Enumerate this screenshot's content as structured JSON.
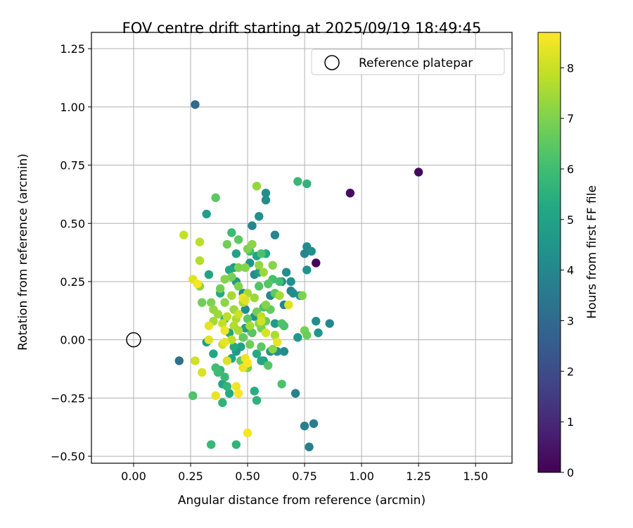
{
  "chart_data": {
    "type": "scatter",
    "title": "FOV centre drift starting at 2025/09/19 18:49:45",
    "xlabel": "Angular distance from reference (arcmin)",
    "ylabel": "Rotation from reference (arcmin)",
    "xlim": [
      -0.185,
      1.66
    ],
    "ylim": [
      -0.53,
      1.32
    ],
    "xticks": [
      0.0,
      0.25,
      0.5,
      0.75,
      1.0,
      1.25,
      1.5
    ],
    "xtick_labels": [
      "0.00",
      "0.25",
      "0.50",
      "0.75",
      "1.00",
      "1.25",
      "1.50"
    ],
    "yticks": [
      -0.5,
      -0.25,
      0.0,
      0.25,
      0.5,
      0.75,
      1.0,
      1.25
    ],
    "ytick_labels": [
      "−0.50",
      "−0.25",
      "0.00",
      "0.25",
      "0.50",
      "0.75",
      "1.00",
      "1.25"
    ],
    "grid": true,
    "legend": {
      "label": "Reference platepar",
      "position": "top-right"
    },
    "reference_point": {
      "x": 0.0,
      "y": 0.0
    },
    "colorbar": {
      "label": "Hours from first FF file",
      "range": [
        0,
        8.7
      ],
      "ticks": [
        0,
        1,
        2,
        3,
        4,
        5,
        6,
        7,
        8
      ],
      "tick_labels": [
        "0",
        "1",
        "2",
        "3",
        "4",
        "5",
        "6",
        "7",
        "8"
      ],
      "colormap": "viridis"
    },
    "points": [
      [
        0.8,
        0.33,
        0.1
      ],
      [
        0.95,
        0.63,
        0.3
      ],
      [
        1.25,
        0.72,
        0.2
      ],
      [
        0.27,
        1.01,
        3.0
      ],
      [
        0.2,
        -0.09,
        3.2
      ],
      [
        0.77,
        -0.46,
        3.8
      ],
      [
        0.75,
        -0.37,
        3.8
      ],
      [
        0.79,
        -0.36,
        3.7
      ],
      [
        0.71,
        -0.23,
        3.8
      ],
      [
        0.52,
        0.49,
        4.0
      ],
      [
        0.62,
        0.45,
        4.0
      ],
      [
        0.58,
        0.63,
        4.2
      ],
      [
        0.58,
        0.6,
        4.2
      ],
      [
        0.55,
        0.53,
        4.3
      ],
      [
        0.76,
        0.4,
        4.1
      ],
      [
        0.78,
        0.38,
        4.3
      ],
      [
        0.75,
        0.37,
        4.0
      ],
      [
        0.76,
        0.3,
        4.4
      ],
      [
        0.67,
        0.29,
        4.2
      ],
      [
        0.65,
        0.25,
        4.0
      ],
      [
        0.69,
        0.25,
        4.3
      ],
      [
        0.69,
        0.21,
        3.8
      ],
      [
        0.7,
        0.2,
        4.2
      ],
      [
        0.73,
        0.19,
        4.3
      ],
      [
        0.66,
        0.15,
        3.9
      ],
      [
        0.6,
        0.19,
        4.0
      ],
      [
        0.8,
        0.08,
        4.2
      ],
      [
        0.86,
        0.07,
        4.0
      ],
      [
        0.81,
        0.03,
        4.5
      ],
      [
        0.72,
        0.01,
        4.6
      ],
      [
        0.66,
        -0.05,
        4.2
      ],
      [
        0.63,
        -0.05,
        4.3
      ],
      [
        0.6,
        -0.05,
        4.5
      ],
      [
        0.57,
        -0.09,
        4.8
      ],
      [
        0.62,
        0.07,
        4.7
      ],
      [
        0.53,
        0.28,
        4.2
      ],
      [
        0.51,
        0.33,
        4.5
      ],
      [
        0.55,
        0.29,
        4.8
      ],
      [
        0.48,
        0.2,
        4.0
      ],
      [
        0.49,
        0.13,
        4.2
      ],
      [
        0.53,
        0.1,
        4.4
      ],
      [
        0.45,
        0.25,
        4.6
      ],
      [
        0.44,
        0.31,
        4.7
      ],
      [
        0.45,
        0.37,
        5.0
      ],
      [
        0.42,
        0.3,
        5.2
      ],
      [
        0.54,
        0.36,
        5.0
      ],
      [
        0.58,
        0.37,
        5.2
      ],
      [
        0.49,
        0.05,
        4.8
      ],
      [
        0.47,
        -0.03,
        5.0
      ],
      [
        0.45,
        -0.05,
        4.6
      ],
      [
        0.43,
        -0.08,
        5.1
      ],
      [
        0.56,
        -0.09,
        5.2
      ],
      [
        0.54,
        -0.06,
        5.3
      ],
      [
        0.32,
        0.54,
        4.8
      ],
      [
        0.33,
        0.28,
        5.0
      ],
      [
        0.32,
        -0.01,
        4.8
      ],
      [
        0.35,
        -0.06,
        5.2
      ],
      [
        0.38,
        0.2,
        5.3
      ],
      [
        0.4,
        0.09,
        5.5
      ],
      [
        0.42,
        0.03,
        5.2
      ],
      [
        0.44,
        -0.03,
        5.3
      ],
      [
        0.39,
        -0.19,
        5.0
      ],
      [
        0.42,
        -0.23,
        5.3
      ],
      [
        0.53,
        -0.22,
        5.4
      ],
      [
        0.54,
        -0.26,
        5.6
      ],
      [
        0.34,
        -0.45,
        5.8
      ],
      [
        0.45,
        -0.45,
        5.6
      ],
      [
        0.38,
        -0.13,
        5.7
      ],
      [
        0.4,
        -0.16,
        5.8
      ],
      [
        0.41,
        -0.2,
        5.7
      ],
      [
        0.37,
        -0.14,
        5.9
      ],
      [
        0.36,
        -0.12,
        6.0
      ],
      [
        0.39,
        -0.27,
        5.6
      ],
      [
        0.65,
        -0.19,
        6.2
      ],
      [
        0.72,
        0.68,
        5.8
      ],
      [
        0.76,
        0.67,
        5.6
      ],
      [
        0.43,
        0.46,
        5.9
      ],
      [
        0.36,
        0.61,
        6.5
      ],
      [
        0.54,
        0.66,
        7.3
      ],
      [
        0.26,
        -0.24,
        6.3
      ],
      [
        0.51,
        0.38,
        6.0
      ],
      [
        0.56,
        0.37,
        6.2
      ],
      [
        0.61,
        0.26,
        6.1
      ],
      [
        0.64,
        0.25,
        6.0
      ],
      [
        0.59,
        0.24,
        6.4
      ],
      [
        0.55,
        0.23,
        6.3
      ],
      [
        0.62,
        0.2,
        6.5
      ],
      [
        0.57,
        0.14,
        6.2
      ],
      [
        0.6,
        0.13,
        6.6
      ],
      [
        0.54,
        0.12,
        6.8
      ],
      [
        0.5,
        0.09,
        6.5
      ],
      [
        0.58,
        0.08,
        6.7
      ],
      [
        0.65,
        0.07,
        6.3
      ],
      [
        0.56,
        0.05,
        6.9
      ],
      [
        0.52,
        0.03,
        6.4
      ],
      [
        0.48,
        0.01,
        6.6
      ],
      [
        0.51,
        -0.02,
        6.8
      ],
      [
        0.56,
        -0.03,
        6.5
      ],
      [
        0.59,
        -0.11,
        6.4
      ],
      [
        0.47,
        -0.09,
        6.6
      ],
      [
        0.5,
        -0.12,
        6.9
      ],
      [
        0.46,
        0.43,
        6.5
      ],
      [
        0.41,
        0.41,
        6.8
      ],
      [
        0.5,
        0.39,
        7.0
      ],
      [
        0.52,
        0.41,
        7.2
      ],
      [
        0.46,
        0.31,
        7.0
      ],
      [
        0.49,
        0.31,
        7.1
      ],
      [
        0.55,
        0.32,
        7.3
      ],
      [
        0.61,
        0.32,
        7.1
      ],
      [
        0.57,
        0.29,
        7.4
      ],
      [
        0.43,
        0.27,
        6.9
      ],
      [
        0.4,
        0.26,
        7.1
      ],
      [
        0.46,
        0.23,
        7.0
      ],
      [
        0.5,
        0.2,
        7.5
      ],
      [
        0.53,
        0.18,
        7.4
      ],
      [
        0.43,
        0.19,
        7.5
      ],
      [
        0.38,
        0.22,
        6.8
      ],
      [
        0.29,
        0.23,
        7.2
      ],
      [
        0.3,
        0.16,
        6.8
      ],
      [
        0.34,
        0.16,
        7.0
      ],
      [
        0.35,
        0.13,
        7.3
      ],
      [
        0.4,
        0.16,
        7.2
      ],
      [
        0.44,
        0.13,
        7.4
      ],
      [
        0.48,
        0.16,
        7.6
      ],
      [
        0.37,
        0.11,
        7.4
      ],
      [
        0.35,
        0.08,
        7.5
      ],
      [
        0.41,
        0.1,
        7.8
      ],
      [
        0.45,
        0.09,
        7.6
      ],
      [
        0.39,
        0.07,
        7.9
      ],
      [
        0.44,
        0.06,
        7.7
      ],
      [
        0.46,
        0.04,
        7.6
      ],
      [
        0.43,
        0.0,
        7.8
      ],
      [
        0.39,
        -0.02,
        8.0
      ],
      [
        0.51,
        0.06,
        7.5
      ],
      [
        0.55,
        0.07,
        7.2
      ],
      [
        0.56,
        0.1,
        7.8
      ],
      [
        0.58,
        0.15,
        7.1
      ],
      [
        0.62,
        0.02,
        7.6
      ],
      [
        0.61,
        -0.04,
        7.2
      ],
      [
        0.64,
        0.19,
        7.5
      ],
      [
        0.74,
        0.19,
        7.0
      ],
      [
        0.68,
        0.15,
        8.1
      ],
      [
        0.75,
        0.04,
        6.9
      ],
      [
        0.76,
        0.02,
        6.7
      ],
      [
        0.66,
        0.06,
        6.2
      ],
      [
        0.33,
        0.06,
        8.4
      ],
      [
        0.4,
        0.04,
        8.5
      ],
      [
        0.29,
        0.42,
        7.8
      ],
      [
        0.22,
        0.45,
        7.9
      ],
      [
        0.29,
        0.34,
        7.7
      ],
      [
        0.26,
        0.26,
        8.3
      ],
      [
        0.28,
        0.24,
        8.6
      ],
      [
        0.3,
        -0.14,
        8.2
      ],
      [
        0.27,
        -0.09,
        8.1
      ],
      [
        0.33,
        -0.0,
        8.3
      ],
      [
        0.36,
        -0.24,
        8.4
      ],
      [
        0.45,
        -0.2,
        8.5
      ],
      [
        0.46,
        -0.23,
        8.6
      ],
      [
        0.48,
        -0.12,
        8.4
      ],
      [
        0.49,
        -0.08,
        8.5
      ],
      [
        0.5,
        -0.1,
        8.7
      ],
      [
        0.41,
        -0.09,
        8.2
      ],
      [
        0.5,
        -0.4,
        8.6
      ],
      [
        0.48,
        0.18,
        8.5
      ],
      [
        0.49,
        0.17,
        8.3
      ],
      [
        0.63,
        -0.01,
        8.4
      ],
      [
        0.56,
        0.08,
        8.1
      ],
      [
        0.46,
        0.11,
        8.0
      ],
      [
        0.68,
        0.15,
        8.3
      ],
      [
        0.58,
        0.03,
        8.2
      ],
      [
        0.4,
        -0.01,
        8.4
      ]
    ]
  }
}
